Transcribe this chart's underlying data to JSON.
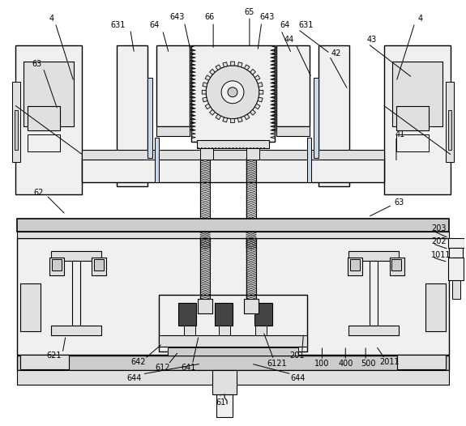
{
  "bg_color": "#ffffff",
  "lc": "#000000",
  "fc_light": "#f0f0f0",
  "fc_med": "#e0e0e0",
  "fc_dark": "#cccccc",
  "fc_darkest": "#444444",
  "fc_blue": "#c8d8e8",
  "figsize": [
    5.75,
    5.26
  ],
  "dpi": 100
}
